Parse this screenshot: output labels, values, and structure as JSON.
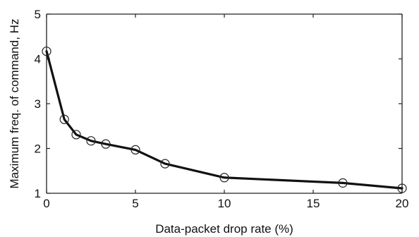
{
  "chart_data": {
    "type": "line",
    "title": "",
    "xlabel": "Data-packet drop rate (%)",
    "ylabel": "Maximum freq. of command, Hz",
    "xlim": [
      0,
      20
    ],
    "ylim": [
      1,
      5
    ],
    "xticks": [
      0,
      5,
      10,
      15,
      20
    ],
    "yticks": [
      1,
      2,
      3,
      4,
      5
    ],
    "grid": false,
    "legend": "none",
    "series": [
      {
        "x": [
          0,
          1,
          1.667,
          2.5,
          3.333,
          5,
          6.667,
          10,
          16.667,
          20
        ],
        "y": [
          4.17,
          2.65,
          2.31,
          2.17,
          2.1,
          1.97,
          1.66,
          1.35,
          1.23,
          1.11
        ]
      }
    ],
    "line_color": "#111111",
    "marker": "circle"
  }
}
